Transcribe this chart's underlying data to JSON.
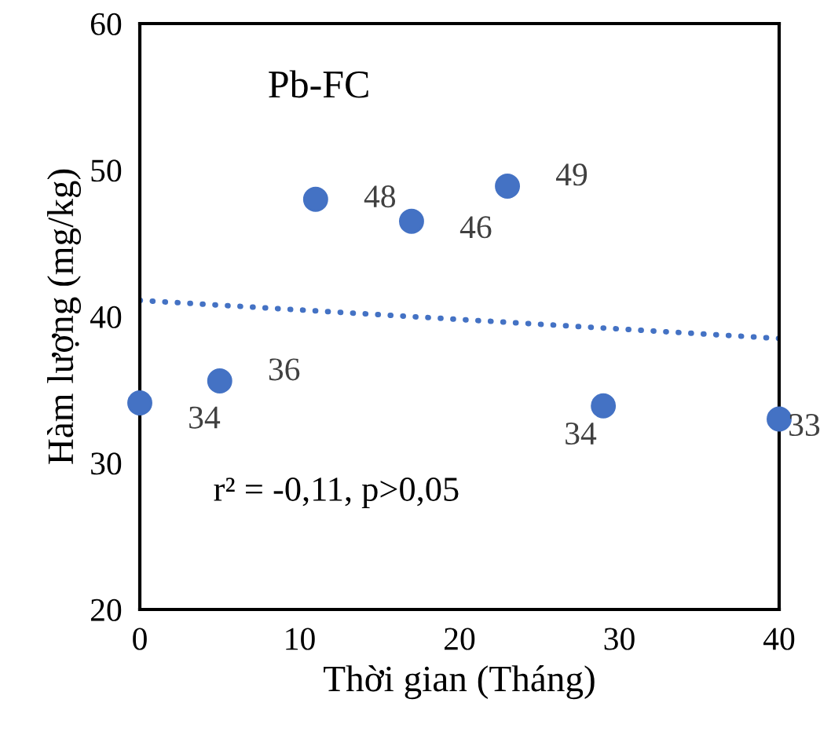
{
  "chart_data": {
    "type": "scatter",
    "xlabel": "Thời gian (Tháng)",
    "ylabel": "Hàm lượng (mg/kg)",
    "annotations": [
      "Pb-FC",
      "r² = -0,11, p>0,05"
    ],
    "xlim": [
      0,
      40
    ],
    "ylim": [
      20,
      60
    ],
    "xticks": [
      0,
      10,
      20,
      30,
      40
    ],
    "yticks": [
      20,
      30,
      40,
      50,
      60
    ],
    "grid": false,
    "marker": "circle",
    "series": [
      {
        "color": "#4472c4",
        "x": [
          0,
          5,
          11,
          17,
          23,
          29,
          40
        ],
        "values": [
          34.1,
          35.6,
          48.0,
          46.5,
          48.9,
          33.9,
          33.0
        ],
        "value_labels": [
          "34",
          "36",
          "48",
          "46",
          "49",
          "34",
          "33"
        ]
      },
      {
        "type": "line",
        "color": "#4472c4",
        "line_style": "dotted",
        "marker": "none",
        "x": [
          0,
          40
        ],
        "values": [
          41.1,
          38.5
        ]
      }
    ]
  }
}
